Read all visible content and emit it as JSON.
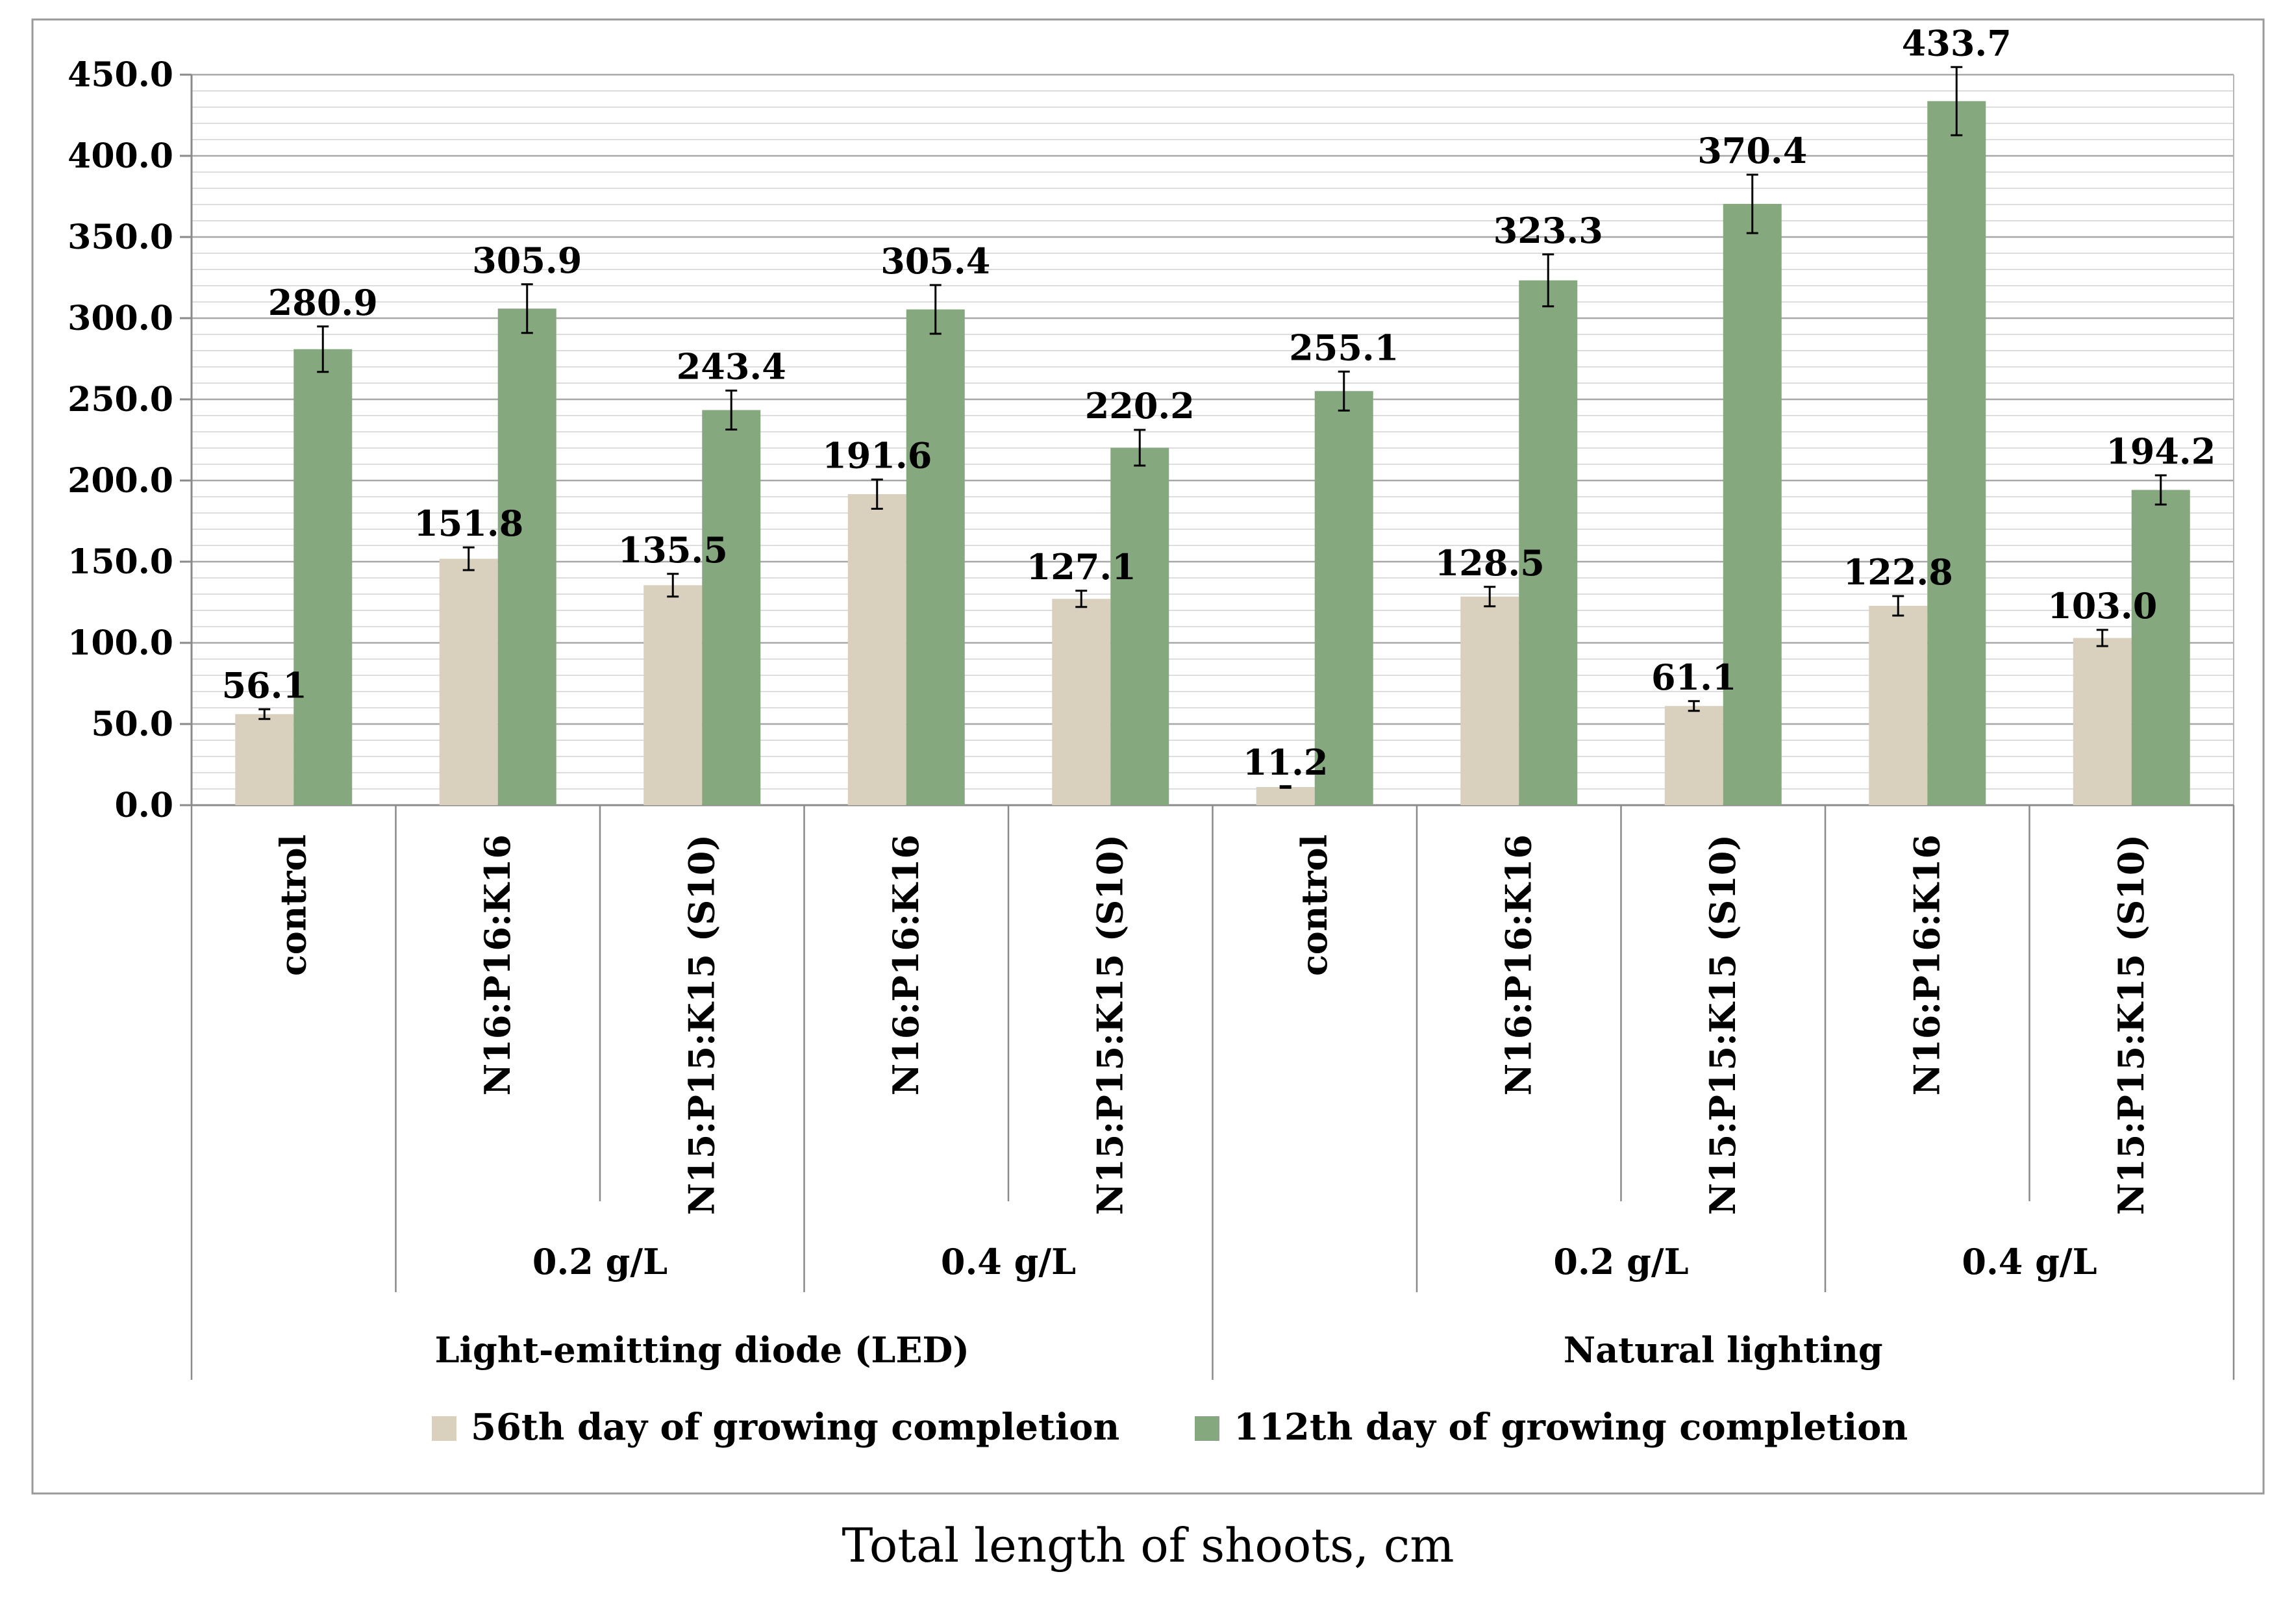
{
  "chart_data": {
    "type": "bar",
    "caption": "Total length of shoots, cm",
    "ylim": [
      0,
      450
    ],
    "ytick_step": 50,
    "ytick_labels": [
      "0.0",
      "50.0",
      "100.0",
      "150.0",
      "200.0",
      "250.0",
      "300.0",
      "350.0",
      "400.0",
      "450.0"
    ],
    "categories": [
      "control",
      "N16:P16:K16",
      "N15:P15:K15 (S10)",
      "N16:P16:K16",
      "N15:P15:K15 (S10)",
      "control",
      "N16:P16:K16",
      "N15:P15:K15 (S10)",
      "N16:P16:K16",
      "N15:P15:K15 (S10)"
    ],
    "concentration_groups": [
      {
        "label": "0.2 g/L",
        "from": 1,
        "to": 2
      },
      {
        "label": "0.4 g/L",
        "from": 3,
        "to": 4
      },
      {
        "label": "0.2 g/L",
        "from": 6,
        "to": 7
      },
      {
        "label": "0.4 g/L",
        "from": 8,
        "to": 9
      }
    ],
    "lighting_groups": [
      {
        "label": "Light-emitting diode (LED)",
        "from": 0,
        "to": 4
      },
      {
        "label": "Natural lighting",
        "from": 5,
        "to": 9
      }
    ],
    "series": [
      {
        "name": "56th day of growing completion",
        "color": "#d9d0bd",
        "values": [
          56.1,
          151.8,
          135.5,
          191.6,
          127.1,
          11.2,
          128.5,
          61.1,
          122.8,
          103.0
        ],
        "labels": [
          "56.1",
          "151.8",
          "135.5",
          "191.6",
          "127.1",
          "11.2",
          "128.5",
          "61.1",
          "122.8",
          "103.0"
        ],
        "errors": [
          3,
          7,
          7,
          9,
          5,
          0.5,
          6,
          3,
          6,
          5
        ]
      },
      {
        "name": "112th day of growing completion",
        "color": "#86a87e",
        "values": [
          280.9,
          305.9,
          243.4,
          305.4,
          220.2,
          255.1,
          323.3,
          370.4,
          433.7,
          194.2
        ],
        "labels": [
          "280.9",
          "305.9",
          "243.4",
          "305.4",
          "220.2",
          "255.1",
          "323.3",
          "370.4",
          "433.7",
          "194.2"
        ],
        "errors": [
          14,
          15,
          12,
          15,
          11,
          12,
          16,
          18,
          21,
          9
        ]
      }
    ],
    "grid": true,
    "legend_position": "bottom"
  }
}
